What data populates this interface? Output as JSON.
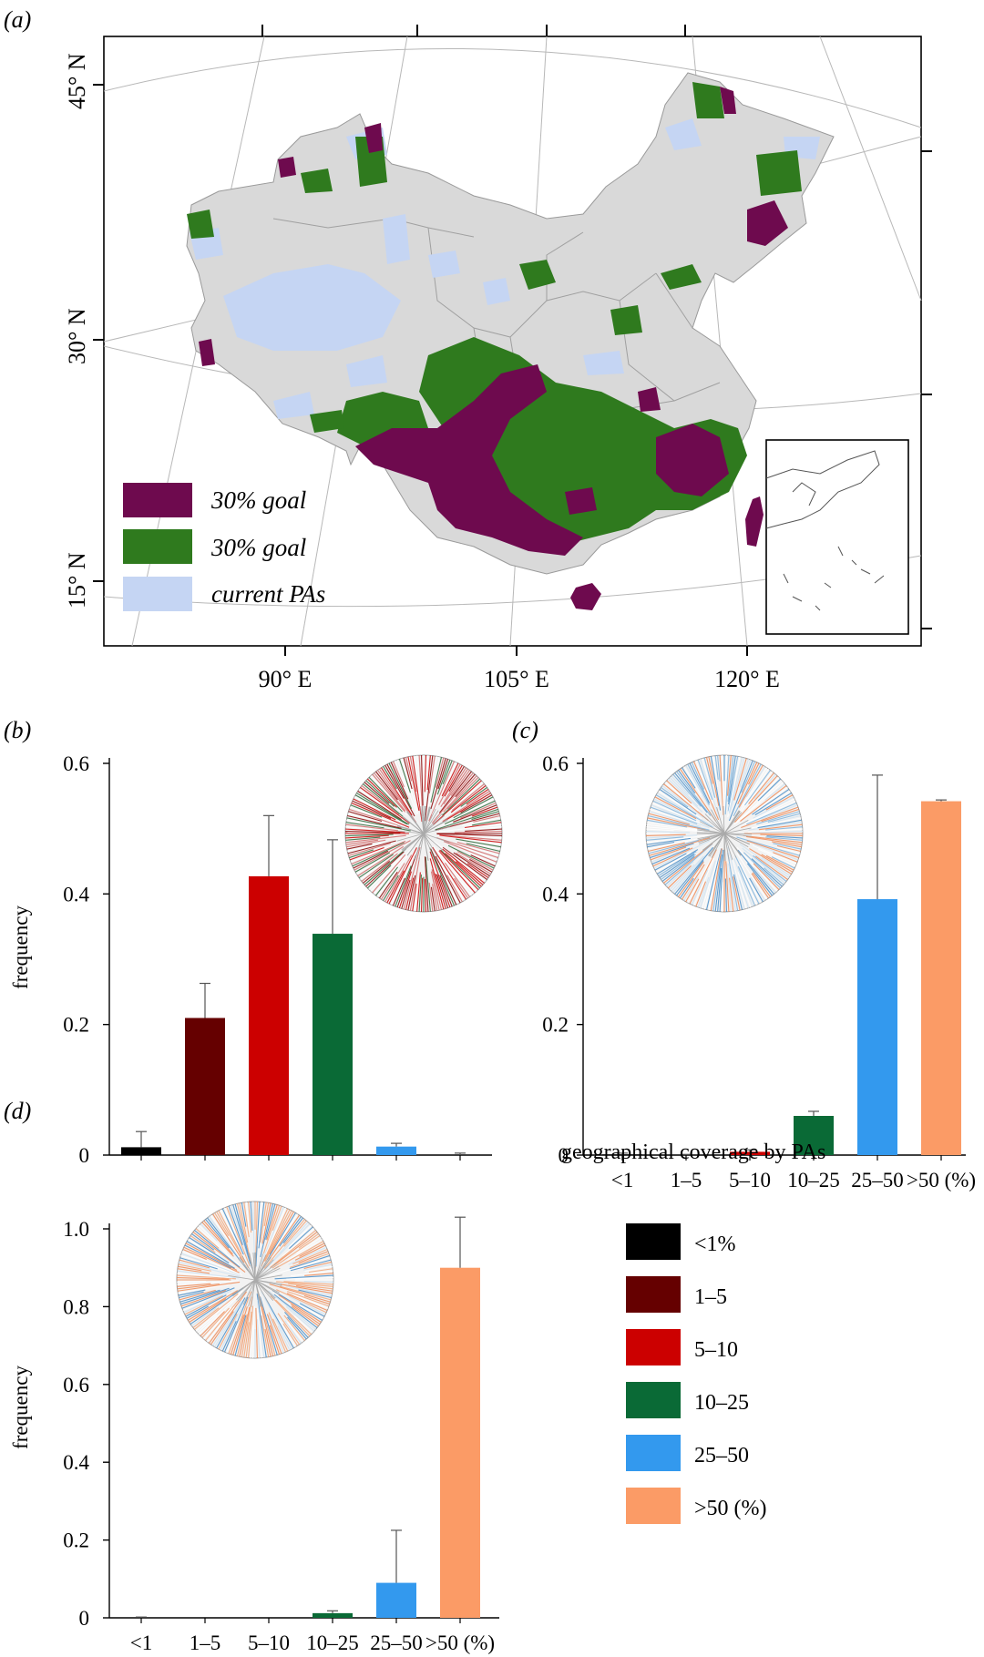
{
  "panels": {
    "a": "(a)",
    "b": "(b)",
    "c": "(c)",
    "d": "(d)"
  },
  "map": {
    "lat_labels": [
      "45° N",
      "30° N",
      "15° N"
    ],
    "lon_labels": [
      "90° E",
      "105° E",
      "120° E"
    ],
    "legend": [
      {
        "label": "30% goal",
        "color": "#6e0a4e"
      },
      {
        "label": "30% goal",
        "color": "#2f7a1e"
      },
      {
        "label": "current PAs",
        "color": "#c5d5f3"
      }
    ],
    "colors": {
      "land": "#d9d9d9",
      "pa": "#c5d5f3",
      "goal_a": "#6e0a4e",
      "goal_b": "#2f7a1e",
      "border": "#a0a0a0"
    }
  },
  "legend": {
    "title": "geographical coverage by PAs",
    "items": [
      {
        "label": "<1%",
        "color": "#000000"
      },
      {
        "label": "1–5",
        "color": "#650000"
      },
      {
        "label": "5–10",
        "color": "#cc0000"
      },
      {
        "label": "10–25",
        "color": "#0a6a36"
      },
      {
        "label": "25–50",
        "color": "#3399ee"
      },
      {
        "label": ">50 (%)",
        "color": "#fb9b66"
      }
    ]
  },
  "chart_data": [
    {
      "type": "bar",
      "panel": "(b)",
      "ylabel": "frequency",
      "ylim": [
        0,
        0.6
      ],
      "yticks": [
        "0",
        "0.2",
        "0.4",
        "0.6"
      ],
      "categories": [
        "<1",
        "1–5",
        "5–10",
        "10–25",
        "25–50",
        ">50 (%)"
      ],
      "xtick_labels_shown": false,
      "values": [
        0.012,
        0.21,
        0.427,
        0.339,
        0.013,
        0.0
      ],
      "errors": [
        0.024,
        0.053,
        0.093,
        0.144,
        0.005,
        0.003
      ],
      "colors": [
        "#000000",
        "#650000",
        "#cc0000",
        "#0a6a36",
        "#3399ee",
        "#fb9b66"
      ]
    },
    {
      "type": "bar",
      "panel": "(c)",
      "ylabel": "",
      "ylim": [
        0,
        0.6
      ],
      "yticks": [
        "0",
        "0.2",
        "0.4",
        "0.6"
      ],
      "categories": [
        "<1",
        "1–5",
        "5–10",
        "10–25",
        "25–50",
        ">50 (%)"
      ],
      "xtick_labels_shown": true,
      "values": [
        0.001,
        0.0,
        0.005,
        0.06,
        0.392,
        0.542
      ],
      "errors": [
        0.002,
        0.001,
        0.003,
        0.007,
        0.19,
        0.002
      ],
      "colors": [
        "#000000",
        "#650000",
        "#cc0000",
        "#0a6a36",
        "#3399ee",
        "#fb9b66"
      ]
    },
    {
      "type": "bar",
      "panel": "(d)",
      "ylabel": "frequency",
      "ylim": [
        0,
        1.0
      ],
      "yticks": [
        "0",
        "0.2",
        "0.4",
        "0.6",
        "0.8",
        "1.0"
      ],
      "categories": [
        "<1",
        "1–5",
        "5–10",
        "10–25",
        "25–50",
        ">50 (%)"
      ],
      "xtick_labels_shown": true,
      "values": [
        0.0,
        0.0,
        0.0,
        0.012,
        0.09,
        0.9
      ],
      "errors": [
        0.002,
        0.0,
        0.0,
        0.006,
        0.135,
        0.13
      ],
      "colors": [
        "#000000",
        "#650000",
        "#cc0000",
        "#0a6a36",
        "#3399ee",
        "#fb9b66"
      ]
    }
  ]
}
